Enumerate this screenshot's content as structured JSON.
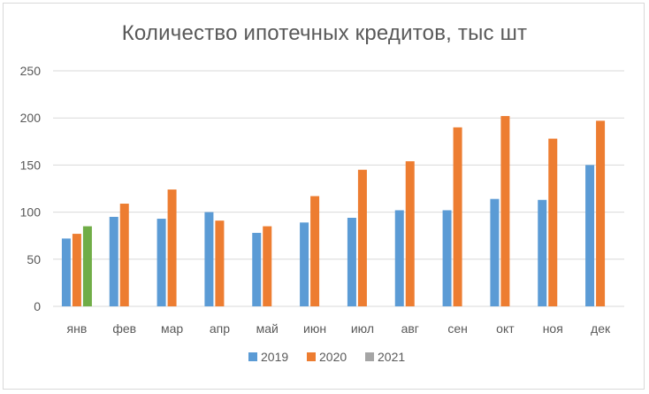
{
  "chart_data": {
    "type": "bar",
    "title": "Количество ипотечных кредитов, тыс шт",
    "xlabel": "",
    "ylabel": "",
    "ylim": [
      0,
      250
    ],
    "yticks": [
      0,
      50,
      100,
      150,
      200,
      250
    ],
    "grid": true,
    "legend_position": "bottom",
    "categories": [
      "янв",
      "фев",
      "мар",
      "апр",
      "май",
      "июн",
      "июл",
      "авг",
      "сен",
      "окт",
      "ноя",
      "дек"
    ],
    "series": [
      {
        "name": "2019",
        "color": "#5b9bd5",
        "values": [
          72,
          95,
          93,
          100,
          78,
          89,
          94,
          102,
          102,
          114,
          113,
          150
        ]
      },
      {
        "name": "2020",
        "color": "#ed7d31",
        "values": [
          77,
          109,
          124,
          91,
          85,
          117,
          145,
          154,
          190,
          202,
          178,
          197
        ]
      },
      {
        "name": "2021",
        "color": "#a5a5a5",
        "values": [
          null,
          null,
          null,
          null,
          null,
          null,
          null,
          null,
          null,
          null,
          null,
          null
        ]
      }
    ],
    "highlight": {
      "series": "2021",
      "category": "янв",
      "value": 85,
      "color": "#70ad47"
    }
  }
}
